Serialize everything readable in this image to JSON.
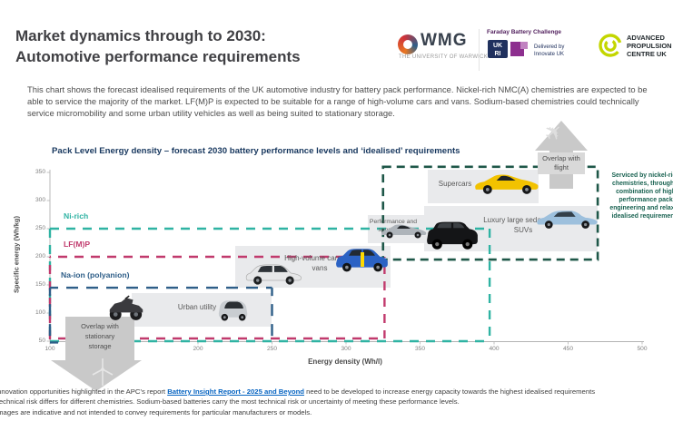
{
  "header": {
    "title_line1": "Market dynamics through to 2030:",
    "title_line2": "Automotive performance requirements"
  },
  "logos": {
    "wmg": {
      "name": "WMG",
      "subtitle": "THE UNIVERSITY OF WARWICK"
    },
    "faraday": {
      "title": "Faraday Battery Challenge",
      "ukri_top": "UK",
      "ukri_bottom": "RI",
      "delivered_line1": "Delivered by",
      "delivered_line2": "Innovate UK"
    },
    "apc": {
      "line1": "ADVANCED",
      "line2": "PROPULSION",
      "line3": "CENTRE UK"
    }
  },
  "intro": "This chart shows the forecast idealised requirements of the UK automotive industry for battery pack performance.  Nickel-rich NMC(A) chemistries are expected to be able to service the majority of the market. LF(M)P is expected to be suitable for a range of high-volume cars and vans.  Sodium-based chemistries could technically service micromobility and some urban utility vehicles as well as being suited to stationary storage.",
  "chart_data": {
    "type": "area",
    "title": "Pack Level Energy density – forecast 2030 battery performance levels and ‘idealised’ requirements",
    "xlabel": "Energy density (Wh/l)",
    "ylabel": "Specific energy (Wh/kg)",
    "xlim": [
      100,
      500
    ],
    "ylim": [
      50,
      350
    ],
    "x_ticks": [
      100,
      150,
      200,
      250,
      300,
      350,
      400,
      450,
      500
    ],
    "y_ticks": [
      50,
      100,
      150,
      200,
      250,
      300,
      350
    ],
    "grid": false,
    "chemistry_regions": [
      {
        "name": "Ni-rich",
        "color": "#2fb3a3",
        "x_range": [
          100,
          397
        ],
        "y_range": [
          50,
          250
        ]
      },
      {
        "name": "LF(M)P",
        "color": "#c13a6d",
        "x_range": [
          100,
          326
        ],
        "y_range": [
          50,
          200
        ]
      },
      {
        "name": "Na-ion (polyanion)",
        "color": "#2e5e88",
        "x_range": [
          100,
          250
        ],
        "y_range": [
          50,
          145
        ]
      }
    ],
    "idealised_requirements_box": {
      "color": "#1e5748",
      "x_range": [
        325,
        470
      ],
      "y_range": [
        195,
        360
      ],
      "note_lines": [
        "Serviced by nickel-rich",
        "chemistries, through a",
        "combination of high",
        "performance pack",
        "engineering and relaxed",
        "idealised requirements"
      ]
    },
    "vehicle_segments": [
      {
        "label": "Urban utility",
        "x_range": [
          155,
          250
        ],
        "y_range": [
          75,
          135
        ]
      },
      {
        "label": "High-volume cars and vans",
        "x_range": [
          225,
          330
        ],
        "y_range": [
          145,
          220
        ]
      },
      {
        "label": "Performance and sports cars",
        "x_range": [
          315,
          355
        ],
        "y_range": [
          225,
          275
        ]
      },
      {
        "label": "Supercars",
        "x_range": [
          355,
          430
        ],
        "y_range": [
          295,
          355
        ]
      },
      {
        "label": "Luxury large sedans and SUVs",
        "x_range": [
          353,
          470
        ],
        "y_range": [
          210,
          290
        ]
      }
    ],
    "annotations": [
      {
        "label_line1": "Overlap with",
        "label_line2": "flight"
      },
      {
        "label_line1": "Overlap with",
        "label_line2": "stationary",
        "label_line3": "storage"
      }
    ]
  },
  "footnotes": {
    "line1_pre": "Innovation opportunities highlighted in the APC’s report ",
    "line1_link": "Battery Insight Report - 2025 and Beyond",
    "line1_post": " need to be developed to increase energy capacity towards the highest idealised requirements",
    "line2": "Technical risk differs for different chemistries. Sodium-based batteries carry the most technical risk or uncertainty of meeting  these performance levels.",
    "line3": "Images are indicative and not intended to convey requirements for particular manufacturers or models."
  }
}
